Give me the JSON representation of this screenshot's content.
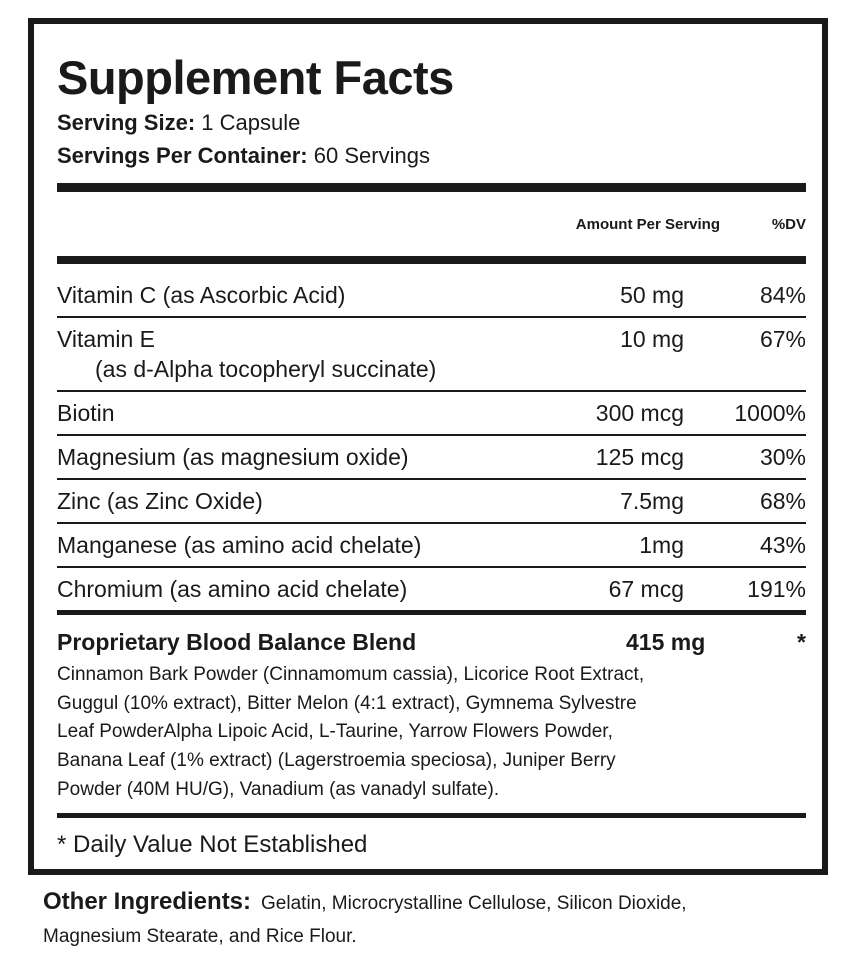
{
  "title": "Supplement Facts",
  "serving_size": {
    "label": "Serving Size:",
    "value": "1 Capsule"
  },
  "servings_per_container": {
    "label": "Servings Per Container:",
    "value": "60 Servings"
  },
  "header": {
    "amount": "Amount Per Serving",
    "dv": "%DV"
  },
  "rows": [
    {
      "name": "Vitamin C (as Ascorbic Acid)",
      "amount": "50 mg",
      "dv": "84%"
    },
    {
      "name": "Vitamin E",
      "sub": "(as d-Alpha tocopheryl succinate)",
      "amount": "10 mg",
      "dv": "67%"
    },
    {
      "name": "Biotin",
      "amount": "300 mcg",
      "dv": "1000%"
    },
    {
      "name": "Magnesium (as magnesium oxide)",
      "amount": "125 mcg",
      "dv": "30%"
    },
    {
      "name": "Zinc (as Zinc Oxide)",
      "amount": "7.5mg",
      "dv": "68%"
    },
    {
      "name": "Manganese (as amino acid chelate)",
      "amount": "1mg",
      "dv": "43%"
    },
    {
      "name": "Chromium (as amino acid chelate)",
      "amount": "67 mcg",
      "dv": "191%"
    }
  ],
  "blend": {
    "name": "Proprietary Blood Balance Blend",
    "amount": "415 mg",
    "dv": "*",
    "ingredients": [
      "Cinnamon Bark Powder (Cinnamomum cassia), Licorice Root Extract,",
      "Guggul (10% extract), Bitter Melon (4:1 extract), Gymnema Sylvestre",
      "Leaf PowderAlpha Lipoic Acid, L-Taurine, Yarrow Flowers Powder,",
      "Banana Leaf (1% extract) (Lagerstroemia speciosa), Juniper Berry",
      "Powder (40M HU/G), Vanadium (as vanadyl sulfate)."
    ]
  },
  "footnote": "* Daily Value Not Established",
  "other_ingredients": {
    "label": "Other Ingredients:",
    "lines": [
      "Gelatin, Microcrystalline Cellulose, Silicon Dioxide,",
      "Magnesium Stearate, and Rice Flour."
    ]
  }
}
